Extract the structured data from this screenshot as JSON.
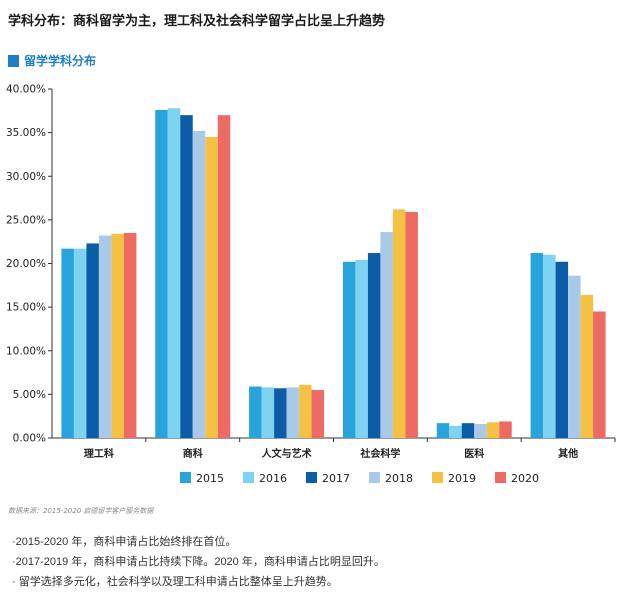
{
  "title": "学科分布：商科留学为主，理工科及社会科学留学占比呈上升趋势",
  "section_label": "留学学科分布",
  "source": "数据来源：2015-2020 启德留学客户服务数据",
  "notes": [
    "·2015-2020 年，商科申请占比始终排在首位。",
    "·2017-2019 年，商科申请占比持续下降。2020 年，商科申请占比明显回升。",
    "· 留学选择多元化，社会科学以及理工科申请占比整体呈上升趋势。"
  ],
  "chart_data": {
    "type": "bar",
    "categories": [
      "理工科",
      "商科",
      "人文与艺术",
      "社会科学",
      "医科",
      "其他"
    ],
    "series": [
      {
        "name": "2015",
        "color": "#29a3dc",
        "values": [
          21.7,
          37.6,
          5.9,
          20.2,
          1.7,
          21.2
        ]
      },
      {
        "name": "2016",
        "color": "#7dd3f0",
        "values": [
          21.7,
          37.8,
          5.8,
          20.4,
          1.4,
          21.0
        ]
      },
      {
        "name": "2017",
        "color": "#0b5da8",
        "values": [
          22.3,
          37.0,
          5.7,
          21.2,
          1.7,
          20.2
        ]
      },
      {
        "name": "2018",
        "color": "#a9c9e8",
        "values": [
          23.2,
          35.2,
          5.8,
          23.6,
          1.6,
          18.6
        ]
      },
      {
        "name": "2019",
        "color": "#f5c142",
        "values": [
          23.4,
          34.5,
          6.1,
          26.2,
          1.8,
          16.4
        ]
      },
      {
        "name": "2020",
        "color": "#ee6b65",
        "values": [
          23.5,
          37.0,
          5.5,
          25.9,
          1.9,
          14.5
        ]
      }
    ],
    "yticks": [
      "0.00%",
      "5.00%",
      "10.00%",
      "15.00%",
      "20.00%",
      "25.00%",
      "30.00%",
      "35.00%",
      "40.00%"
    ],
    "ylim": [
      0,
      40
    ],
    "grid": false,
    "legend_position": "bottom"
  }
}
